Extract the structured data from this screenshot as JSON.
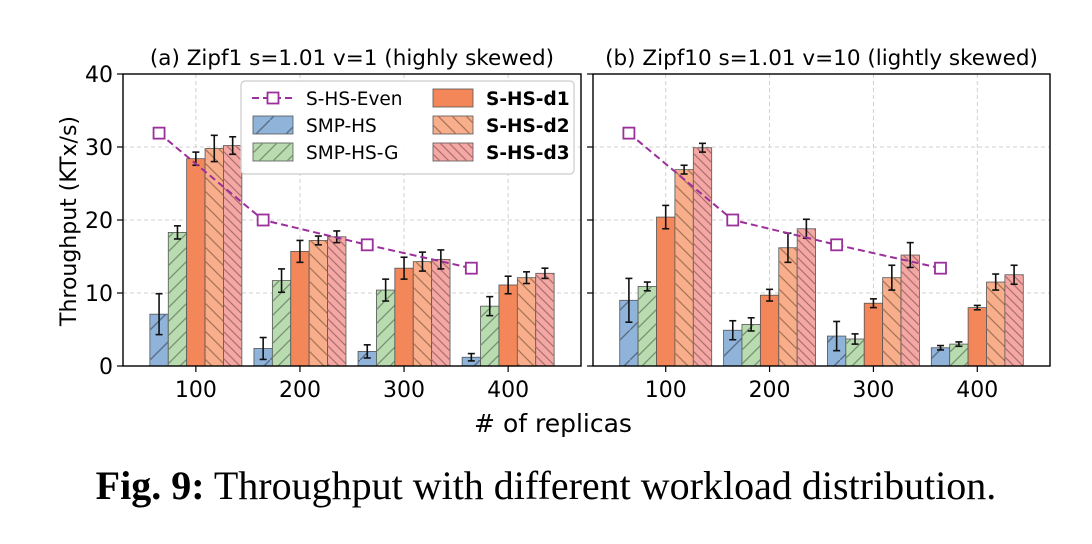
{
  "caption": {
    "label": "Fig. 9:",
    "text": "Throughput with different workload distribution."
  },
  "chart_data": {
    "type": "bar",
    "ylabel": "Throughput (KTx/s)",
    "xlabel": "# of replicas",
    "ylim": [
      0,
      40
    ],
    "yticks": [
      "0",
      "10",
      "20",
      "30",
      "40"
    ],
    "categories": [
      "100",
      "200",
      "300",
      "400"
    ],
    "grid": true,
    "legend": {
      "placement": "top-center of left panel",
      "entries": [
        "S-HS-Even",
        "SMP-HS",
        "SMP-HS-G",
        "S-HS-d1",
        "S-HS-d2",
        "S-HS-d3"
      ]
    },
    "colors": {
      "SMP-HS": "#8fb3d9",
      "SMP-HS-G": "#b8dbb0",
      "S-HS-d1": "#f4875a",
      "S-HS-d2": "#f8ae8b",
      "S-HS-d3": "#f5a7a4",
      "S-HS-Even": "#9b2f9b"
    },
    "panels": [
      {
        "title": "(a) Zipf1 s=1.01 v=1 (highly skewed)",
        "series": [
          {
            "name": "SMP-HS",
            "values": [
              7.1,
              2.4,
              2.0,
              1.2
            ],
            "errors": [
              2.8,
              1.5,
              0.9,
              0.5
            ]
          },
          {
            "name": "SMP-HS-G",
            "values": [
              18.3,
              11.7,
              10.4,
              8.2
            ],
            "errors": [
              0.9,
              1.6,
              1.5,
              1.3
            ]
          },
          {
            "name": "S-HS-d1",
            "values": [
              28.4,
              15.7,
              13.4,
              11.1
            ],
            "errors": [
              0.9,
              1.5,
              1.5,
              1.2
            ]
          },
          {
            "name": "S-HS-d2",
            "values": [
              29.8,
              17.2,
              14.3,
              12.1
            ],
            "errors": [
              1.8,
              0.6,
              1.3,
              0.8
            ]
          },
          {
            "name": "S-HS-d3",
            "values": [
              30.2,
              17.7,
              14.6,
              12.7
            ],
            "errors": [
              1.2,
              0.8,
              1.3,
              0.7
            ]
          }
        ],
        "line": {
          "name": "S-HS-Even",
          "values": [
            31.9,
            20.0,
            16.6,
            13.4
          ]
        }
      },
      {
        "title": "(b) Zipf10 s=1.01 v=10 (lightly skewed)",
        "series": [
          {
            "name": "SMP-HS",
            "values": [
              9.0,
              4.9,
              4.1,
              2.5
            ],
            "errors": [
              3.0,
              1.3,
              2.0,
              0.3
            ]
          },
          {
            "name": "SMP-HS-G",
            "values": [
              10.9,
              5.7,
              3.7,
              3.0
            ],
            "errors": [
              0.6,
              0.9,
              0.7,
              0.3
            ]
          },
          {
            "name": "S-HS-d1",
            "values": [
              20.4,
              9.7,
              8.6,
              8.0
            ],
            "errors": [
              1.6,
              0.8,
              0.6,
              0.3
            ]
          },
          {
            "name": "S-HS-d2",
            "values": [
              26.9,
              16.2,
              12.1,
              11.5
            ],
            "errors": [
              0.6,
              2.0,
              1.7,
              1.1
            ]
          },
          {
            "name": "S-HS-d3",
            "values": [
              29.9,
              18.8,
              15.2,
              12.5
            ],
            "errors": [
              0.6,
              1.3,
              1.7,
              1.3
            ]
          }
        ],
        "line": {
          "name": "S-HS-Even",
          "values": [
            31.9,
            20.0,
            16.6,
            13.4
          ]
        }
      }
    ]
  }
}
